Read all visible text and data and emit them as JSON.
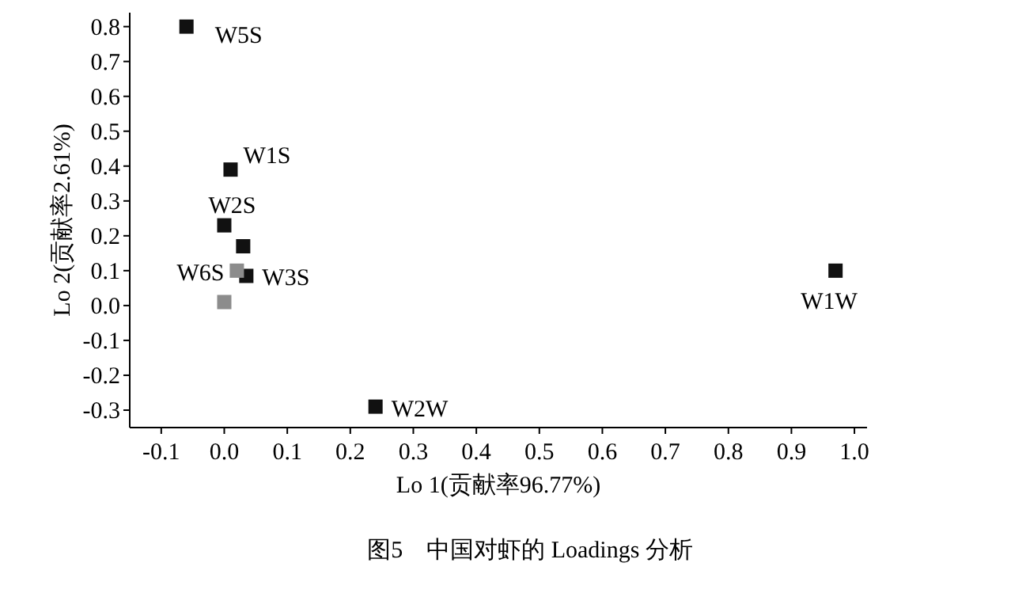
{
  "chart_data": {
    "type": "scatter",
    "title": "图5　中国对虾的 Loadings 分析",
    "xlabel": "Lo 1(贡献率96.77%)",
    "ylabel": "Lo 2(贡献率2.61%)",
    "series": [
      {
        "color": "#111111",
        "x": [
          -0.06,
          0.01,
          0.0,
          0.03,
          0.035,
          0.24,
          0.97
        ],
        "values": [
          0.8,
          0.39,
          0.23,
          0.17,
          0.085,
          -0.29,
          0.1
        ]
      },
      {
        "color": "#8c8c8c",
        "x": [
          0.02,
          0.0
        ],
        "values": [
          0.1,
          0.01
        ]
      }
    ],
    "annotations": [
      {
        "text": "W5S",
        "x": -0.06,
        "y": 0.8
      },
      {
        "text": "W1S",
        "x": 0.01,
        "y": 0.39
      },
      {
        "text": "W2S",
        "x": 0.0,
        "y": 0.23
      },
      {
        "text": "W3S",
        "x": 0.035,
        "y": 0.085
      },
      {
        "text": "W6S",
        "x": 0.02,
        "y": 0.1
      },
      {
        "text": "W2W",
        "x": 0.24,
        "y": -0.29
      },
      {
        "text": "W1W",
        "x": 0.97,
        "y": 0.1
      }
    ],
    "xlim": [
      -0.15,
      1.02
    ],
    "ylim": [
      -0.35,
      0.84
    ],
    "xticks": [
      {
        "value": -0.1,
        "label": "-0.1"
      },
      {
        "value": 0,
        "label": "0.0"
      },
      {
        "value": 0.1,
        "label": "0.1"
      },
      {
        "value": 0.2,
        "label": "0.2"
      },
      {
        "value": 0.3,
        "label": "0.3"
      },
      {
        "value": 0.4,
        "label": "0.4"
      },
      {
        "value": 0.5,
        "label": "0.5"
      },
      {
        "value": 0.6,
        "label": "0.6"
      },
      {
        "value": 0.7,
        "label": "0.7"
      },
      {
        "value": 0.8,
        "label": "0.8"
      },
      {
        "value": 0.9,
        "label": "0.9"
      },
      {
        "value": 1,
        "label": "1.0"
      }
    ],
    "yticks": [
      {
        "value": -0.3,
        "label": "-0.3"
      },
      {
        "value": -0.2,
        "label": "-0.2"
      },
      {
        "value": -0.1,
        "label": "-0.1"
      },
      {
        "value": 0,
        "label": "0.0"
      },
      {
        "value": 0.1,
        "label": "0.1"
      },
      {
        "value": 0.2,
        "label": "0.2"
      },
      {
        "value": 0.3,
        "label": "0.3"
      },
      {
        "value": 0.4,
        "label": "0.4"
      },
      {
        "value": 0.5,
        "label": "0.5"
      },
      {
        "value": 0.6,
        "label": "0.6"
      },
      {
        "value": 0.7,
        "label": "0.7"
      },
      {
        "value": 0.8,
        "label": "0.8"
      }
    ],
    "marker": "square",
    "grid": false
  }
}
